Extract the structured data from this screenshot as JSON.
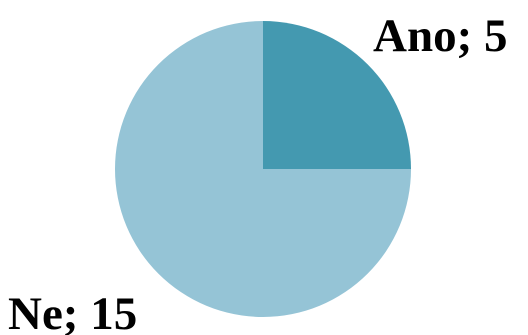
{
  "chart_data": {
    "type": "pie",
    "slices": [
      {
        "label": "Ano",
        "value": 5,
        "display": "Ano; 5",
        "color": "#4499B0"
      },
      {
        "label": "Ne",
        "value": 15,
        "display": "Ne; 15",
        "color": "#95C4D6"
      }
    ],
    "start_angle_deg": 0,
    "direction": "clockwise",
    "legend": "none"
  }
}
